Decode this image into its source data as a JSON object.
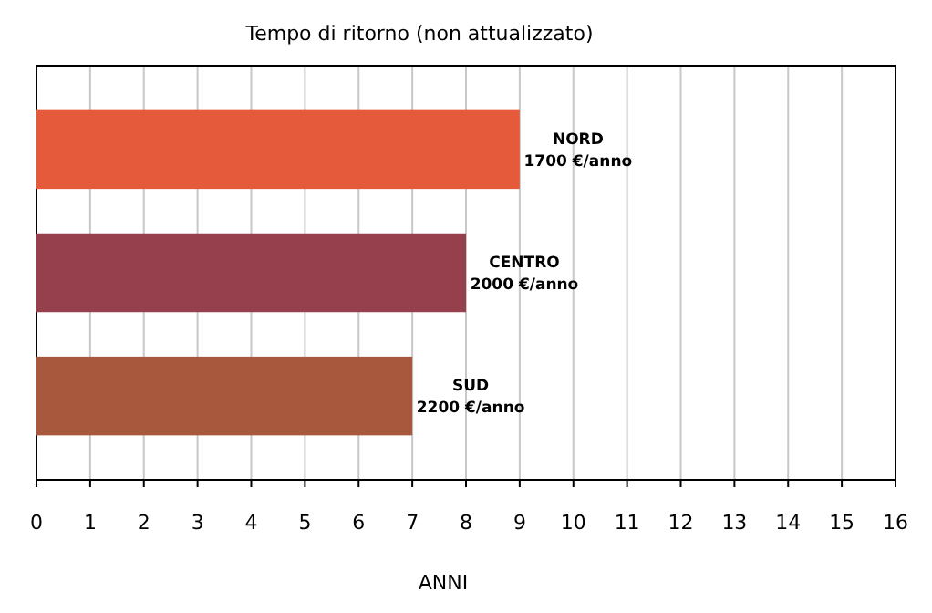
{
  "chart_data": {
    "type": "bar",
    "orientation": "horizontal",
    "title": "Tempo di ritorno (non attualizzato)",
    "xlabel": "ANNI",
    "categories": [
      "NORD",
      "CENTRO",
      "SUD"
    ],
    "values": [
      9,
      8,
      7
    ],
    "colors": [
      "#e65a3c",
      "#96404e",
      "#a8583c"
    ],
    "xlim": [
      0,
      16
    ],
    "xticks": [
      0,
      1,
      2,
      3,
      4,
      5,
      6,
      7,
      8,
      9,
      10,
      11,
      12,
      13,
      14,
      15,
      16
    ],
    "grid": "x",
    "annotations": [
      {
        "text": "1700 €/anno",
        "x": 9,
        "y": "NORD"
      },
      {
        "text": "2000 €/anno",
        "x": 8,
        "y": "CENTRO"
      },
      {
        "text": "2200 €/anno",
        "x": 7,
        "y": "SUD"
      }
    ]
  }
}
